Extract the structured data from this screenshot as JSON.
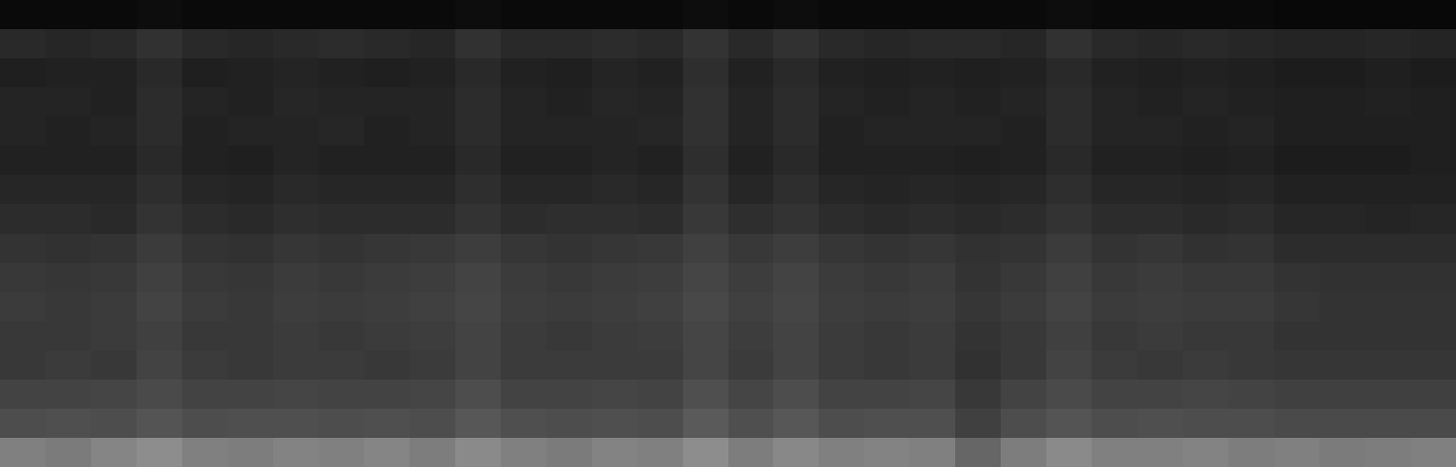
{
  "chart_data": {
    "type": "heatmap",
    "tick_labels": false,
    "zlim": [
      0,
      1
    ],
    "z": [
      [
        0.04,
        0.04,
        0.04,
        0.05,
        0.04,
        0.04,
        0.04,
        0.04,
        0.04,
        0.04,
        0.05,
        0.04,
        0.04,
        0.04,
        0.04,
        0.05,
        0.04,
        0.05,
        0.04,
        0.04,
        0.04,
        0.04,
        0.04,
        0.05,
        0.04,
        0.04,
        0.04,
        0.04,
        0.03,
        0.03,
        0.03,
        0.03
      ],
      [
        0.16,
        0.15,
        0.16,
        0.19,
        0.16,
        0.15,
        0.16,
        0.17,
        0.16,
        0.15,
        0.19,
        0.16,
        0.16,
        0.17,
        0.16,
        0.2,
        0.16,
        0.19,
        0.16,
        0.15,
        0.16,
        0.16,
        0.15,
        0.19,
        0.16,
        0.15,
        0.16,
        0.15,
        0.14,
        0.14,
        0.15,
        0.14
      ],
      [
        0.12,
        0.13,
        0.13,
        0.16,
        0.12,
        0.13,
        0.14,
        0.13,
        0.12,
        0.13,
        0.16,
        0.13,
        0.12,
        0.14,
        0.13,
        0.18,
        0.13,
        0.16,
        0.13,
        0.12,
        0.13,
        0.12,
        0.13,
        0.16,
        0.13,
        0.12,
        0.13,
        0.12,
        0.11,
        0.11,
        0.12,
        0.11
      ],
      [
        0.14,
        0.14,
        0.13,
        0.17,
        0.14,
        0.13,
        0.15,
        0.14,
        0.14,
        0.14,
        0.17,
        0.14,
        0.13,
        0.15,
        0.14,
        0.19,
        0.14,
        0.17,
        0.14,
        0.13,
        0.14,
        0.13,
        0.14,
        0.17,
        0.14,
        0.13,
        0.14,
        0.13,
        0.12,
        0.12,
        0.13,
        0.12
      ],
      [
        0.14,
        0.13,
        0.14,
        0.17,
        0.13,
        0.14,
        0.14,
        0.15,
        0.13,
        0.14,
        0.17,
        0.14,
        0.14,
        0.14,
        0.15,
        0.19,
        0.14,
        0.17,
        0.13,
        0.14,
        0.14,
        0.14,
        0.13,
        0.17,
        0.14,
        0.14,
        0.13,
        0.14,
        0.12,
        0.12,
        0.12,
        0.12
      ],
      [
        0.13,
        0.13,
        0.13,
        0.16,
        0.13,
        0.12,
        0.14,
        0.13,
        0.13,
        0.13,
        0.16,
        0.13,
        0.13,
        0.14,
        0.13,
        0.18,
        0.13,
        0.16,
        0.13,
        0.13,
        0.13,
        0.12,
        0.13,
        0.16,
        0.13,
        0.13,
        0.12,
        0.13,
        0.11,
        0.11,
        0.11,
        0.12
      ],
      [
        0.15,
        0.15,
        0.15,
        0.18,
        0.15,
        0.14,
        0.16,
        0.15,
        0.15,
        0.15,
        0.18,
        0.15,
        0.15,
        0.16,
        0.15,
        0.2,
        0.15,
        0.18,
        0.15,
        0.14,
        0.15,
        0.14,
        0.15,
        0.18,
        0.15,
        0.15,
        0.14,
        0.15,
        0.13,
        0.13,
        0.13,
        0.13
      ],
      [
        0.17,
        0.17,
        0.16,
        0.2,
        0.17,
        0.16,
        0.18,
        0.17,
        0.17,
        0.17,
        0.2,
        0.17,
        0.18,
        0.18,
        0.17,
        0.22,
        0.18,
        0.2,
        0.17,
        0.16,
        0.17,
        0.16,
        0.17,
        0.2,
        0.17,
        0.17,
        0.16,
        0.17,
        0.15,
        0.15,
        0.14,
        0.15
      ],
      [
        0.2,
        0.19,
        0.2,
        0.23,
        0.2,
        0.19,
        0.21,
        0.2,
        0.21,
        0.22,
        0.24,
        0.21,
        0.2,
        0.21,
        0.22,
        0.25,
        0.22,
        0.24,
        0.21,
        0.2,
        0.21,
        0.19,
        0.2,
        0.23,
        0.2,
        0.21,
        0.19,
        0.2,
        0.17,
        0.17,
        0.17,
        0.17
      ],
      [
        0.22,
        0.21,
        0.22,
        0.25,
        0.22,
        0.21,
        0.23,
        0.22,
        0.23,
        0.24,
        0.26,
        0.23,
        0.22,
        0.23,
        0.24,
        0.27,
        0.24,
        0.26,
        0.23,
        0.22,
        0.23,
        0.2,
        0.22,
        0.25,
        0.22,
        0.23,
        0.22,
        0.22,
        0.2,
        0.19,
        0.19,
        0.19
      ],
      [
        0.23,
        0.22,
        0.23,
        0.26,
        0.23,
        0.22,
        0.24,
        0.23,
        0.24,
        0.25,
        0.27,
        0.24,
        0.23,
        0.24,
        0.25,
        0.28,
        0.25,
        0.27,
        0.24,
        0.23,
        0.24,
        0.21,
        0.23,
        0.26,
        0.23,
        0.24,
        0.23,
        0.23,
        0.21,
        0.2,
        0.2,
        0.2
      ],
      [
        0.22,
        0.22,
        0.23,
        0.25,
        0.22,
        0.22,
        0.23,
        0.22,
        0.23,
        0.24,
        0.26,
        0.23,
        0.22,
        0.23,
        0.24,
        0.27,
        0.24,
        0.26,
        0.23,
        0.22,
        0.23,
        0.2,
        0.22,
        0.25,
        0.22,
        0.23,
        0.22,
        0.22,
        0.2,
        0.2,
        0.2,
        0.2
      ],
      [
        0.22,
        0.23,
        0.22,
        0.26,
        0.23,
        0.22,
        0.23,
        0.23,
        0.22,
        0.23,
        0.26,
        0.23,
        0.23,
        0.23,
        0.23,
        0.27,
        0.23,
        0.26,
        0.23,
        0.22,
        0.23,
        0.19,
        0.22,
        0.26,
        0.23,
        0.22,
        0.23,
        0.22,
        0.21,
        0.21,
        0.21,
        0.21
      ],
      [
        0.26,
        0.26,
        0.27,
        0.29,
        0.26,
        0.26,
        0.27,
        0.26,
        0.26,
        0.27,
        0.3,
        0.26,
        0.26,
        0.27,
        0.26,
        0.31,
        0.27,
        0.3,
        0.26,
        0.26,
        0.27,
        0.22,
        0.26,
        0.29,
        0.26,
        0.26,
        0.27,
        0.26,
        0.25,
        0.25,
        0.25,
        0.25
      ],
      [
        0.3,
        0.31,
        0.3,
        0.33,
        0.3,
        0.31,
        0.31,
        0.3,
        0.31,
        0.3,
        0.34,
        0.31,
        0.3,
        0.31,
        0.3,
        0.35,
        0.31,
        0.34,
        0.3,
        0.31,
        0.31,
        0.25,
        0.3,
        0.33,
        0.3,
        0.31,
        0.3,
        0.3,
        0.29,
        0.29,
        0.29,
        0.29
      ],
      [
        0.5,
        0.48,
        0.52,
        0.55,
        0.5,
        0.49,
        0.51,
        0.5,
        0.52,
        0.49,
        0.54,
        0.5,
        0.48,
        0.51,
        0.5,
        0.55,
        0.49,
        0.53,
        0.5,
        0.51,
        0.5,
        0.4,
        0.49,
        0.54,
        0.5,
        0.5,
        0.51,
        0.49,
        0.5,
        0.48,
        0.49,
        0.5
      ]
    ]
  }
}
